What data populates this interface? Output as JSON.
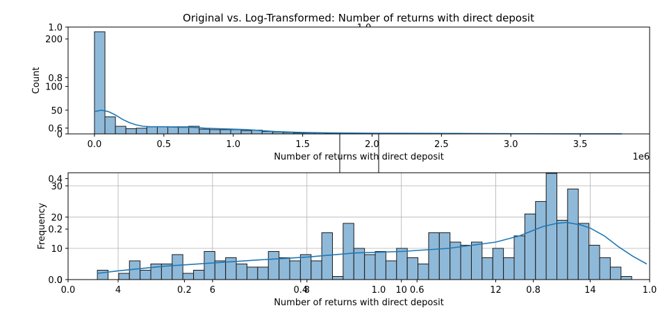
{
  "title": "Original vs. Log-Transformed: Number of returns with direct deposit",
  "colors": {
    "bar_fill": "#8fb9d9",
    "bar_edge": "#1a1a1a",
    "kde": "#1f77b4",
    "grid": "#b0b0b0",
    "axis": "#000000"
  },
  "chart_data": [
    {
      "type": "bar",
      "subtype": "histogram-with-kde",
      "xlabel": "Number of returns with direct deposit",
      "ylabel": "Count",
      "x_offset_label": "1e6",
      "xlim": [
        -0.19,
        4.0
      ],
      "ylim": [
        0,
        225
      ],
      "xticks": [
        0.0,
        0.5,
        1.0,
        1.5,
        2.0,
        2.5,
        3.0,
        3.5
      ],
      "xtick_labels": [
        "0.0",
        "0.5",
        "1.0",
        "1.5",
        "2.0",
        "2.5",
        "3.0",
        "3.5"
      ],
      "yticks": [
        0,
        50,
        100,
        200
      ],
      "ytick_labels": [
        "0",
        "50",
        "100",
        "200"
      ],
      "grid": false,
      "bin_start": 0.0,
      "bin_width": 0.0755,
      "counts": [
        215,
        36,
        16,
        11,
        12,
        15,
        15,
        15,
        15,
        16,
        10,
        9,
        9,
        9,
        7,
        8,
        5,
        4,
        3,
        2,
        2,
        2,
        1,
        1,
        1,
        1,
        0,
        0,
        1,
        0,
        0,
        0,
        1,
        0,
        1,
        0,
        0,
        0,
        0,
        0,
        0,
        0,
        0,
        0,
        0,
        0,
        0,
        0,
        0,
        0
      ],
      "kde": {
        "x": [
          0.0,
          0.05,
          0.1,
          0.15,
          0.2,
          0.25,
          0.3,
          0.35,
          0.4,
          0.5,
          0.6,
          0.7,
          0.8,
          0.9,
          1.0,
          1.1,
          1.2,
          1.3,
          1.4,
          1.5,
          1.7,
          2.0,
          2.5,
          3.0,
          3.5,
          3.8
        ],
        "y": [
          47,
          50,
          47,
          40,
          31,
          24,
          19,
          16,
          15,
          15,
          14,
          14,
          12,
          11,
          10,
          9,
          7,
          5,
          4,
          3,
          2,
          1.5,
          1,
          0.5,
          0.2,
          0.1
        ]
      }
    },
    {
      "type": "bar",
      "subtype": "histogram-with-kde",
      "xlabel": "Number of returns with direct deposit",
      "ylabel": "Frequency",
      "xlim": [
        2.94,
        15.26
      ],
      "ylim": [
        0,
        34.2
      ],
      "xticks": [
        4,
        6,
        8,
        10,
        12,
        14
      ],
      "xtick_labels": [
        "4",
        "6",
        "8",
        "10",
        "12",
        "14"
      ],
      "yticks": [
        0,
        10,
        20,
        30
      ],
      "ytick_labels": [
        "0",
        "10",
        "20",
        "30"
      ],
      "grid": true,
      "bin_start": 3.56,
      "bin_width": 0.2264,
      "counts": [
        3,
        0,
        2,
        6,
        3,
        5,
        5,
        8,
        2,
        3,
        9,
        6,
        7,
        5,
        4,
        4,
        9,
        7,
        6,
        8,
        6,
        15,
        1,
        18,
        10,
        8,
        9,
        6,
        10,
        7,
        5,
        15,
        15,
        12,
        11,
        12,
        7,
        10,
        7,
        14,
        21,
        25,
        34,
        19,
        29,
        18,
        11,
        7,
        4,
        1
      ],
      "kde": {
        "x": [
          3.56,
          4.0,
          5.0,
          6.0,
          7.0,
          8.0,
          9.0,
          10.0,
          11.0,
          12.0,
          12.5,
          13.0,
          13.3,
          13.5,
          13.8,
          14.0,
          14.3,
          14.6,
          14.9,
          15.2
        ],
        "y": [
          2,
          2.8,
          4.3,
          5.3,
          6.3,
          7.2,
          8.5,
          9.0,
          10.0,
          12.0,
          14.0,
          17.0,
          18.0,
          18.3,
          17.5,
          16.5,
          14.0,
          10.5,
          7.5,
          5.0
        ]
      }
    }
  ],
  "background_axes": {
    "xticks": [
      "0.0",
      "0.2",
      "0.4",
      "0.6",
      "0.8",
      "1.0"
    ],
    "yticks": [
      "0.0",
      "0.2",
      "0.4",
      "0.6",
      "0.8",
      "1.0"
    ]
  },
  "middle_axes": {
    "xticks": [
      "0.0",
      "1.0"
    ],
    "yticks": [
      "0.0",
      "1.0"
    ]
  }
}
